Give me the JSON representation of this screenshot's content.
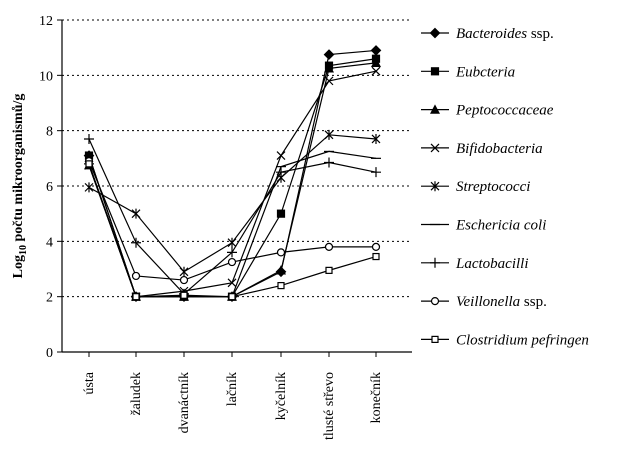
{
  "chart_data": {
    "type": "line",
    "title": "",
    "xlabel": "",
    "ylabel": "Log",
    "ylabel_sub": "10",
    "ylabel_rest": " počtu mikroorganismů/g",
    "ylim": [
      0,
      12
    ],
    "yticks": [
      0,
      2,
      4,
      6,
      8,
      10,
      12
    ],
    "grid": "horizontal dotted",
    "legend_position": "right",
    "categories": [
      "ústa",
      "žaludek",
      "dvanáctník",
      "lačník",
      "kyčelník",
      "tlusté střevo",
      "konečník"
    ],
    "series": [
      {
        "name": "Bacteroides",
        "name_suffix": " ssp.",
        "marker": "diamond-filled",
        "values": [
          7.1,
          2.0,
          2.0,
          2.0,
          2.9,
          10.75,
          10.9
        ]
      },
      {
        "name": "Eubcteria",
        "name_suffix": "",
        "marker": "square-filled",
        "values": [
          7.1,
          2.0,
          2.0,
          2.0,
          5.0,
          10.35,
          10.6
        ]
      },
      {
        "name": "Peptococcaceae",
        "name_suffix": "",
        "marker": "triangle-filled",
        "values": [
          6.75,
          2.0,
          2.0,
          2.0,
          2.95,
          10.25,
          10.45
        ]
      },
      {
        "name": "Bifidobacteria",
        "name_suffix": "",
        "marker": "x",
        "values": [
          6.75,
          2.0,
          2.2,
          2.5,
          7.1,
          9.8,
          10.15
        ]
      },
      {
        "name": "Streptococci",
        "name_suffix": "",
        "marker": "asterisk",
        "values": [
          5.95,
          5.0,
          2.9,
          3.95,
          6.3,
          7.85,
          7.7
        ]
      },
      {
        "name": "Eschericia coli",
        "name_suffix": "",
        "marker": "dash",
        "values": [
          6.8,
          2.0,
          2.0,
          2.0,
          6.7,
          7.25,
          7.0
        ]
      },
      {
        "name": "Lactobacilli",
        "name_suffix": "",
        "marker": "plus",
        "values": [
          7.7,
          3.95,
          2.1,
          3.6,
          6.5,
          6.85,
          6.5
        ]
      },
      {
        "name": "Veillonella",
        "name_suffix": " ssp.",
        "marker": "circle-open",
        "values": [
          6.9,
          2.75,
          2.6,
          3.25,
          3.6,
          3.8,
          3.8
        ]
      },
      {
        "name": "Clostridium pefringen",
        "name_suffix": "",
        "marker": "square-open",
        "values": [
          6.8,
          2.0,
          2.05,
          2.0,
          2.4,
          2.95,
          3.45
        ]
      }
    ]
  }
}
